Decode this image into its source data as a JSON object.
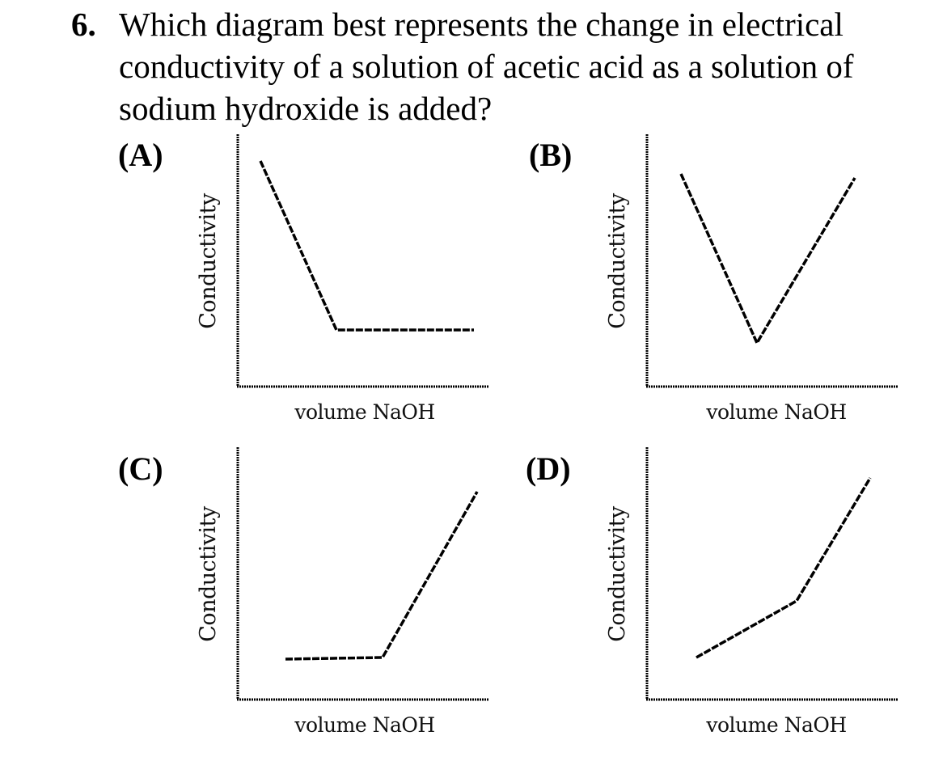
{
  "question": {
    "number": "6.",
    "text": "Which diagram best represents the change in electrical conductivity of a solution of acetic acid as a solution of sodium hydroxide is added?"
  },
  "choices": [
    {
      "label": "(A)",
      "ylabel": "Conductivity",
      "xlabel": "volume NaOH"
    },
    {
      "label": "(B)",
      "ylabel": "Conductivity",
      "xlabel": "volume NaOH"
    },
    {
      "label": "(C)",
      "ylabel": "Conductivity",
      "xlabel": "volume NaOH"
    },
    {
      "label": "(D)",
      "ylabel": "Conductivity",
      "xlabel": "volume NaOH"
    }
  ],
  "colors": {
    "ink": "#000000",
    "background": "#ffffff"
  }
}
